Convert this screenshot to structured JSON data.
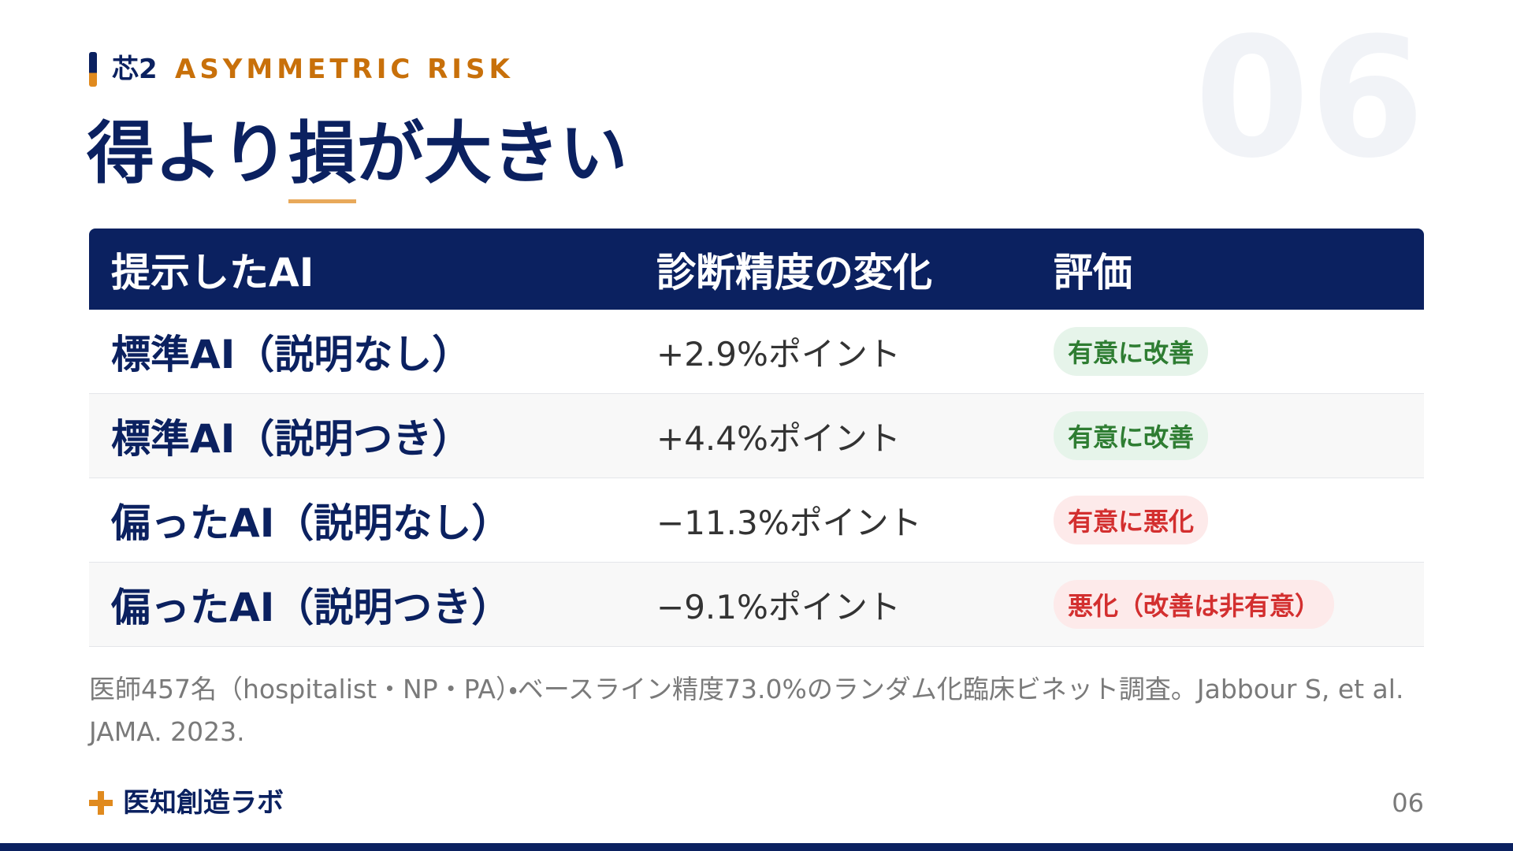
{
  "header": {
    "section_number": "芯2",
    "section_label": "ASYMMETRIC RISK",
    "page_watermark": "06",
    "title_parts": [
      "得より",
      "損",
      "が大きい"
    ]
  },
  "table": {
    "columns": [
      "提示したAI",
      "診断精度の変化",
      "評価"
    ],
    "rows": [
      {
        "label": "標準AI（説明なし）",
        "change": "+2.9%ポイント",
        "rating": "有意に改善",
        "rating_color": "#2e7d32",
        "rating_bg": "#e6f4ea"
      },
      {
        "label": "標準AI（説明つき）",
        "change": "+4.4%ポイント",
        "rating": "有意に改善",
        "rating_color": "#2e7d32",
        "rating_bg": "#e6f4ea"
      },
      {
        "label": "偏ったAI（説明なし）",
        "change": "−11.3%ポイント",
        "rating": "有意に悪化",
        "rating_color": "#d32f2f",
        "rating_bg": "#fdeaea"
      },
      {
        "label": "偏ったAI（説明つき）",
        "change": "−9.1%ポイント",
        "rating": "悪化（改善は非有意）",
        "rating_color": "#d32f2f",
        "rating_bg": "#fdeaea"
      }
    ]
  },
  "footnote": "医師457名（hospitalist・NP・PA）・ベースライン精度73.0%のランダム化臨床ビネット調査。Jabbour S, et al. JAMA. 2023.",
  "footer": {
    "brand": "医知創造ラボ",
    "page_number": "06"
  }
}
